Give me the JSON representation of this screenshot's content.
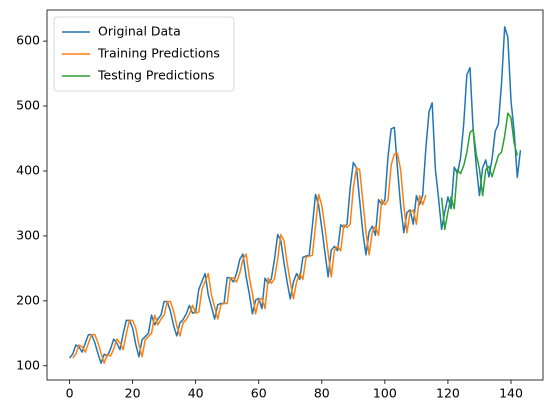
{
  "chart_data": {
    "type": "line",
    "xlim": [
      -7.15,
      150.15
    ],
    "ylim": [
      78.1,
      647.9
    ],
    "xticks": [
      0,
      20,
      40,
      60,
      80,
      100,
      120,
      140
    ],
    "yticks": [
      100,
      200,
      300,
      400,
      500,
      600
    ],
    "legend": "upper left",
    "series": [
      {
        "name": "Original Data",
        "color": "#1f77b4",
        "x": [
          0,
          1,
          2,
          3,
          4,
          5,
          6,
          7,
          8,
          9,
          10,
          11,
          12,
          13,
          14,
          15,
          16,
          17,
          18,
          19,
          20,
          21,
          22,
          23,
          24,
          25,
          26,
          27,
          28,
          29,
          30,
          31,
          32,
          33,
          34,
          35,
          36,
          37,
          38,
          39,
          40,
          41,
          42,
          43,
          44,
          45,
          46,
          47,
          48,
          49,
          50,
          51,
          52,
          53,
          54,
          55,
          56,
          57,
          58,
          59,
          60,
          61,
          62,
          63,
          64,
          65,
          66,
          67,
          68,
          69,
          70,
          71,
          72,
          73,
          74,
          75,
          76,
          77,
          78,
          79,
          80,
          81,
          82,
          83,
          84,
          85,
          86,
          87,
          88,
          89,
          90,
          91,
          92,
          93,
          94,
          95,
          96,
          97,
          98,
          99,
          100,
          101,
          102,
          103,
          104,
          105,
          106,
          107,
          108,
          109,
          110,
          111,
          112,
          113,
          114,
          115,
          116,
          117,
          118,
          119,
          120,
          121,
          122,
          123,
          124,
          125,
          126,
          127,
          128,
          129,
          130,
          131,
          132,
          133,
          134,
          135,
          136,
          137,
          138,
          139,
          140,
          141,
          142,
          143
        ],
        "values": [
          112,
          118,
          132,
          129,
          121,
          135,
          148,
          148,
          136,
          119,
          104,
          118,
          115,
          126,
          141,
          135,
          125,
          149,
          170,
          170,
          158,
          133,
          114,
          140,
          145,
          150,
          178,
          163,
          172,
          178,
          199,
          199,
          184,
          162,
          146,
          166,
          171,
          180,
          193,
          181,
          183,
          218,
          230,
          242,
          209,
          191,
          172,
          194,
          196,
          196,
          236,
          235,
          229,
          243,
          264,
          272,
          237,
          211,
          180,
          201,
          204,
          188,
          235,
          227,
          234,
          264,
          302,
          293,
          259,
          229,
          203,
          229,
          242,
          233,
          267,
          269,
          270,
          315,
          364,
          347,
          312,
          274,
          237,
          278,
          284,
          277,
          317,
          313,
          318,
          374,
          413,
          405,
          355,
          306,
          271,
          306,
          315,
          301,
          356,
          348,
          355,
          422,
          465,
          467,
          404,
          347,
          305,
          336,
          340,
          318,
          362,
          348,
          363,
          435,
          491,
          505,
          404,
          359,
          310,
          337,
          360,
          342,
          406,
          396,
          420,
          472,
          548,
          559,
          463,
          407,
          362,
          405,
          417,
          391,
          419,
          461,
          472,
          535,
          622,
          606,
          508,
          461,
          390,
          432
        ]
      },
      {
        "name": "Training Predictions",
        "color": "#ff7f0e",
        "x": [
          1,
          2,
          3,
          4,
          5,
          6,
          7,
          8,
          9,
          10,
          11,
          12,
          13,
          14,
          15,
          16,
          17,
          18,
          19,
          20,
          21,
          22,
          23,
          24,
          25,
          26,
          27,
          28,
          29,
          30,
          31,
          32,
          33,
          34,
          35,
          36,
          37,
          38,
          39,
          40,
          41,
          42,
          43,
          44,
          45,
          46,
          47,
          48,
          49,
          50,
          51,
          52,
          53,
          54,
          55,
          56,
          57,
          58,
          59,
          60,
          61,
          62,
          63,
          64,
          65,
          66,
          67,
          68,
          69,
          70,
          71,
          72,
          73,
          74,
          75,
          76,
          77,
          78,
          79,
          80,
          81,
          82,
          83,
          84,
          85,
          86,
          87,
          88,
          89,
          90,
          91,
          92,
          93,
          94,
          95,
          96,
          97,
          98,
          99,
          100,
          101,
          102,
          103,
          104,
          105,
          106,
          107,
          108,
          109,
          110,
          111,
          112,
          113
        ],
        "values": [
          112,
          118,
          132,
          129,
          121,
          135,
          148,
          148,
          136,
          119,
          104,
          118,
          115,
          126,
          141,
          135,
          125,
          149,
          170,
          170,
          158,
          133,
          114,
          140,
          145,
          150,
          178,
          163,
          172,
          178,
          199,
          199,
          184,
          162,
          146,
          166,
          171,
          180,
          193,
          181,
          183,
          218,
          230,
          242,
          209,
          191,
          172,
          194,
          196,
          196,
          236,
          235,
          229,
          243,
          264,
          272,
          237,
          211,
          180,
          201,
          204,
          188,
          235,
          227,
          234,
          264,
          302,
          293,
          259,
          229,
          203,
          229,
          242,
          233,
          267,
          269,
          270,
          315,
          364,
          347,
          312,
          274,
          237,
          278,
          284,
          277,
          317,
          313,
          318,
          374,
          405,
          402,
          355,
          306,
          271,
          306,
          315,
          301,
          356,
          348,
          355,
          409,
          426,
          427,
          402,
          347,
          305,
          336,
          340,
          318,
          362,
          348,
          363
        ]
      },
      {
        "name": "Testing Predictions",
        "color": "#2ca02c",
        "x": [
          118,
          119,
          120,
          121,
          122,
          123,
          124,
          125,
          126,
          127,
          128,
          129,
          130,
          131,
          132,
          133,
          134,
          135,
          136,
          137,
          138,
          139,
          140,
          141,
          142
        ],
        "values": [
          359,
          310,
          337,
          360,
          342,
          402,
          396,
          408,
          429,
          459,
          464,
          425,
          403,
          362,
          402,
          407,
          391,
          408,
          424,
          429,
          454,
          489,
          482,
          443,
          424
        ]
      }
    ]
  }
}
